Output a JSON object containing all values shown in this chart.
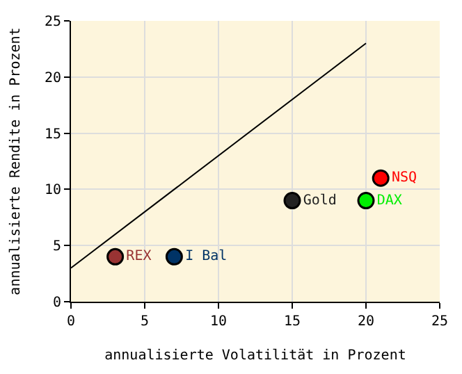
{
  "chart_data": {
    "type": "scatter",
    "xlabel": "annualisierte Volatilität in Prozent",
    "ylabel": "annualisierte Rendite in Prozent",
    "xlim": [
      0,
      25
    ],
    "ylim": [
      0,
      25
    ],
    "xticks": [
      0,
      5,
      10,
      15,
      20,
      25
    ],
    "yticks": [
      0,
      5,
      10,
      15,
      20,
      25
    ],
    "grid": true,
    "legend": false,
    "marker": "circle",
    "series": [
      {
        "type": "line",
        "marker": "none",
        "color": "#000000",
        "x": [
          0,
          20
        ],
        "values": [
          3,
          23
        ]
      },
      {
        "name": "REX",
        "color": "#993333",
        "x": [
          3
        ],
        "values": [
          4
        ]
      },
      {
        "name": "I Bal",
        "color": "#003366",
        "x": [
          7
        ],
        "values": [
          4
        ]
      },
      {
        "name": "Gold",
        "color": "#222222",
        "x": [
          15
        ],
        "values": [
          9
        ]
      },
      {
        "name": "DAX",
        "color": "#00ee00",
        "x": [
          20
        ],
        "values": [
          9
        ]
      },
      {
        "name": "NSQ",
        "color": "#ff0000",
        "x": [
          21
        ],
        "values": [
          11
        ]
      }
    ]
  }
}
